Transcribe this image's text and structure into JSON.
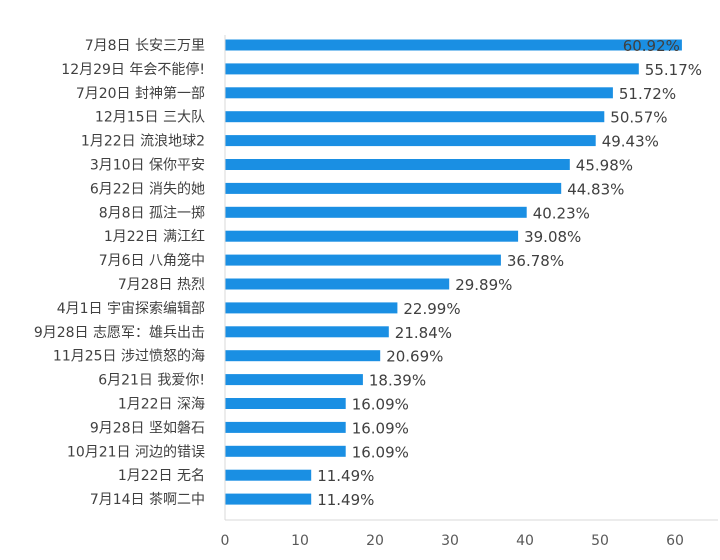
{
  "chart_data": {
    "type": "bar",
    "orientation": "horizontal",
    "categories": [
      "7月8日 长安三万里",
      "12月29日 年会不能停!",
      "7月20日 封神第一部",
      "12月15日 三大队",
      "1月22日 流浪地球2",
      "3月10日 保你平安",
      "6月22日 消失的她",
      "8月8日 孤注一掷",
      "1月22日 满江红",
      "7月6日 八角笼中",
      "7月28日 热烈",
      "4月1日 宇宙探索编辑部",
      "9月28日 志愿军：雄兵出击",
      "11月25日 涉过愤怒的海",
      "6月21日 我爱你!",
      "1月22日 深海",
      "9月28日 坚如磐石",
      "10月21日 河边的错误",
      "1月22日 无名",
      "7月14日 茶啊二中"
    ],
    "values": [
      60.92,
      55.17,
      51.72,
      50.57,
      49.43,
      45.98,
      44.83,
      40.23,
      39.08,
      36.78,
      29.89,
      22.99,
      21.84,
      20.69,
      18.39,
      16.09,
      16.09,
      16.09,
      11.49,
      11.49
    ],
    "value_labels": [
      "60.92%",
      "55.17%",
      "51.72%",
      "50.57%",
      "49.43%",
      "45.98%",
      "44.83%",
      "40.23%",
      "39.08%",
      "36.78%",
      "29.89%",
      "22.99%",
      "21.84%",
      "20.69%",
      "18.39%",
      "16.09%",
      "16.09%",
      "16.09%",
      "11.49%",
      "11.49%"
    ],
    "x_ticks": [
      "0",
      "10",
      "20",
      "30",
      "40",
      "50",
      "60"
    ],
    "xlim": [
      0,
      65
    ],
    "title": "",
    "xlabel": "",
    "ylabel": "",
    "grid": false,
    "legend": "none",
    "bar_color": "#1a8fe3"
  }
}
